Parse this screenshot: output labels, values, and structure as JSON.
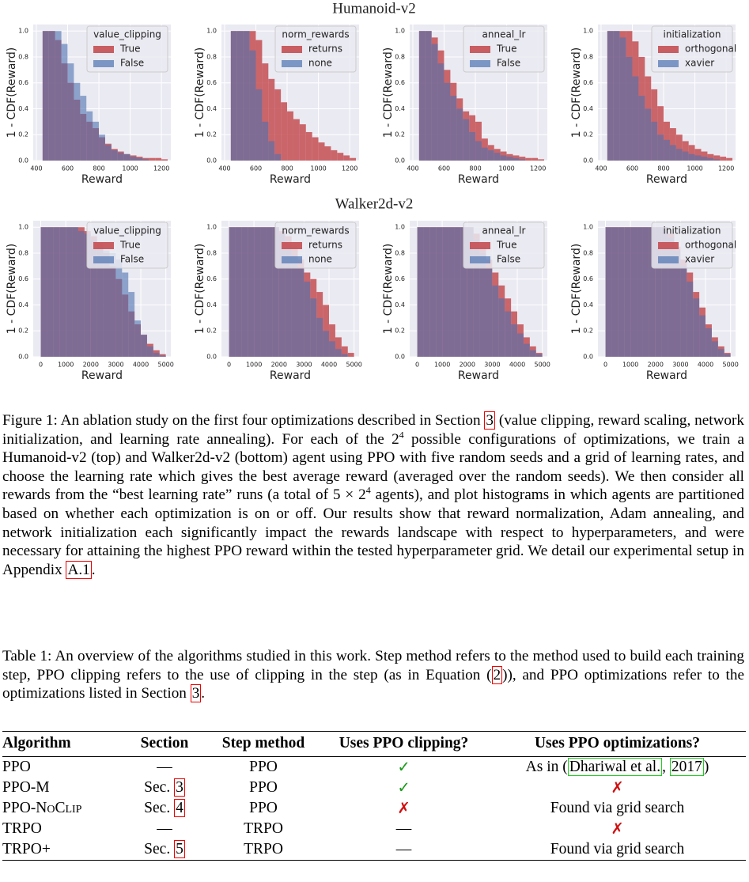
{
  "row_titles": [
    "Humanoid-v2",
    "Walker2d-v2"
  ],
  "chart_data": [
    {
      "type": "histogram",
      "xlabel": "Reward",
      "ylabel": "1 - CDF(Reward)",
      "legend_title": "value_clipping",
      "legend": "upper right",
      "grid": true,
      "bins": [
        440,
        480,
        520,
        560,
        600,
        640,
        680,
        720,
        760,
        800,
        840,
        880,
        920,
        960,
        1000,
        1040,
        1080,
        1120,
        1160,
        1200,
        1240
      ],
      "series": [
        {
          "name": "True",
          "color": "#c44e52",
          "values": [
            1,
            1,
            0.93,
            0.75,
            0.6,
            0.47,
            0.36,
            0.3,
            0.25,
            0.18,
            0.13,
            0.09,
            0.07,
            0.05,
            0.04,
            0.03,
            0.02,
            0.02,
            0.02,
            0.01
          ]
        },
        {
          "name": "False",
          "color": "#4c72b0",
          "values": [
            1,
            1,
            1,
            0.9,
            0.75,
            0.6,
            0.5,
            0.38,
            0.3,
            0.2,
            0.12,
            0.08,
            0.06,
            0.05,
            0.03,
            0.02,
            0.01,
            0,
            0,
            0
          ]
        }
      ],
      "xlim": [
        380,
        1260
      ],
      "xticks": [
        400,
        600,
        800,
        1000,
        1200
      ],
      "ylim": [
        0,
        1.05
      ],
      "yticks": [
        {
          "value": 0,
          "label": "0.0"
        },
        0.2,
        0.4,
        0.6,
        0.8,
        {
          "value": 1,
          "label": "1.0"
        }
      ]
    },
    {
      "type": "histogram",
      "xlabel": "Reward",
      "ylabel": "1 - CDF(Reward)",
      "legend_title": "norm_rewards",
      "legend": "upper right",
      "grid": true,
      "bins": [
        440,
        480,
        520,
        560,
        600,
        640,
        680,
        720,
        760,
        800,
        840,
        880,
        920,
        960,
        1000,
        1040,
        1080,
        1120,
        1160,
        1200,
        1240
      ],
      "series": [
        {
          "name": "returns",
          "color": "#c44e52",
          "values": [
            1,
            1,
            1,
            1,
            0.93,
            0.75,
            0.63,
            0.55,
            0.45,
            0.38,
            0.32,
            0.28,
            0.22,
            0.18,
            0.14,
            0.11,
            0.08,
            0.06,
            0.04,
            0.02
          ]
        },
        {
          "name": "none",
          "color": "#4c72b0",
          "values": [
            1,
            1,
            1,
            0.85,
            0.55,
            0.3,
            0.15,
            0.05,
            0,
            0,
            0,
            0,
            0,
            0,
            0,
            0,
            0,
            0,
            0,
            0
          ]
        }
      ],
      "xlim": [
        380,
        1260
      ],
      "xticks": [
        400,
        600,
        800,
        1000,
        1200
      ],
      "ylim": [
        0,
        1.05
      ],
      "yticks": [
        {
          "value": 0,
          "label": "0.0"
        },
        0.2,
        0.4,
        0.6,
        0.8,
        {
          "value": 1,
          "label": "1.0"
        }
      ]
    },
    {
      "type": "histogram",
      "xlabel": "Reward",
      "ylabel": "1 - CDF(Reward)",
      "legend_title": "anneal_lr",
      "legend": "upper right",
      "grid": true,
      "bins": [
        440,
        480,
        520,
        560,
        600,
        640,
        680,
        720,
        760,
        800,
        840,
        880,
        920,
        960,
        1000,
        1040,
        1080,
        1120,
        1160,
        1200,
        1240
      ],
      "series": [
        {
          "name": "True",
          "color": "#c44e52",
          "values": [
            1,
            1,
            0.95,
            0.85,
            0.7,
            0.6,
            0.48,
            0.38,
            0.35,
            0.3,
            0.17,
            0.12,
            0.09,
            0.07,
            0.05,
            0.04,
            0.03,
            0.02,
            0.02,
            0.01
          ]
        },
        {
          "name": "False",
          "color": "#4c72b0",
          "values": [
            1,
            1,
            0.9,
            0.75,
            0.6,
            0.5,
            0.4,
            0.32,
            0.22,
            0.15,
            0.1,
            0.08,
            0.06,
            0.04,
            0.03,
            0.02,
            0.01,
            0,
            0,
            0
          ]
        }
      ],
      "xlim": [
        380,
        1260
      ],
      "xticks": [
        400,
        600,
        800,
        1000,
        1200
      ],
      "ylim": [
        0,
        1.05
      ],
      "yticks": [
        {
          "value": 0,
          "label": "0.0"
        },
        0.2,
        0.4,
        0.6,
        0.8,
        {
          "value": 1,
          "label": "1.0"
        }
      ]
    },
    {
      "type": "histogram",
      "xlabel": "Reward",
      "ylabel": "1 - CDF(Reward)",
      "legend_title": "initialization",
      "legend": "upper right",
      "grid": true,
      "bins": [
        440,
        480,
        520,
        560,
        600,
        640,
        680,
        720,
        760,
        800,
        840,
        880,
        920,
        960,
        1000,
        1040,
        1080,
        1120,
        1160,
        1200,
        1240
      ],
      "series": [
        {
          "name": "orthogonal",
          "color": "#c44e52",
          "values": [
            1,
            1,
            1,
            1,
            0.92,
            0.8,
            0.65,
            0.55,
            0.42,
            0.3,
            0.25,
            0.2,
            0.15,
            0.12,
            0.09,
            0.07,
            0.05,
            0.04,
            0.03,
            0.02
          ]
        },
        {
          "name": "xavier",
          "color": "#4c72b0",
          "values": [
            1,
            1,
            0.95,
            0.8,
            0.65,
            0.5,
            0.4,
            0.3,
            0.2,
            0.16,
            0.12,
            0.09,
            0.07,
            0.05,
            0.04,
            0.03,
            0.02,
            0.01,
            0,
            0
          ]
        }
      ],
      "xlim": [
        380,
        1260
      ],
      "xticks": [
        400,
        600,
        800,
        1000,
        1200
      ],
      "ylim": [
        0,
        1.05
      ],
      "yticks": [
        {
          "value": 0,
          "label": "0.0"
        },
        0.2,
        0.4,
        0.6,
        0.8,
        {
          "value": 1,
          "label": "1.0"
        }
      ]
    },
    {
      "type": "histogram",
      "xlabel": "Reward",
      "ylabel": "1 - CDF(Reward)",
      "legend_title": "value_clipping",
      "legend": "upper right",
      "grid": true,
      "bins": [
        0,
        250,
        500,
        750,
        1000,
        1250,
        1500,
        1750,
        2000,
        2250,
        2500,
        2750,
        3000,
        3250,
        3500,
        3750,
        4000,
        4250,
        4500,
        4750,
        5000
      ],
      "series": [
        {
          "name": "True",
          "color": "#c44e52",
          "values": [
            1,
            1,
            1,
            1,
            1,
            1,
            1,
            0.97,
            0.93,
            0.88,
            0.8,
            0.7,
            0.6,
            0.48,
            0.35,
            0.25,
            0.17,
            0.1,
            0.05,
            0.02
          ]
        },
        {
          "name": "False",
          "color": "#4c72b0",
          "values": [
            1,
            1,
            1,
            1,
            1,
            1,
            0.97,
            0.95,
            0.9,
            0.85,
            0.82,
            0.8,
            0.75,
            0.65,
            0.5,
            0.28,
            0.17,
            0.08,
            0.03,
            0.01
          ]
        }
      ],
      "xlim": [
        -300,
        5200
      ],
      "xticks": [
        0,
        1000,
        2000,
        3000,
        4000,
        5000
      ],
      "ylim": [
        0,
        1.05
      ],
      "yticks": [
        {
          "value": 0,
          "label": "0.0"
        },
        0.2,
        0.4,
        0.6,
        0.8,
        {
          "value": 1,
          "label": "1.0"
        }
      ]
    },
    {
      "type": "histogram",
      "xlabel": "Reward",
      "ylabel": "1 - CDF(Reward)",
      "legend_title": "norm_rewards",
      "legend": "upper right",
      "grid": true,
      "bins": [
        0,
        250,
        500,
        750,
        1000,
        1250,
        1500,
        1750,
        2000,
        2250,
        2500,
        2750,
        3000,
        3250,
        3500,
        3750,
        4000,
        4250,
        4500,
        4750,
        5000
      ],
      "series": [
        {
          "name": "returns",
          "color": "#c44e52",
          "values": [
            1,
            1,
            1,
            1,
            1,
            1,
            1,
            1,
            0.97,
            0.93,
            0.85,
            0.75,
            0.65,
            0.6,
            0.5,
            0.4,
            0.25,
            0.15,
            0.08,
            0.03
          ]
        },
        {
          "name": "none",
          "color": "#4c72b0",
          "values": [
            1,
            1,
            1,
            1,
            1,
            1,
            1,
            1,
            0.95,
            0.88,
            0.78,
            0.68,
            0.58,
            0.45,
            0.3,
            0.2,
            0.12,
            0.06,
            0.02,
            0
          ]
        }
      ],
      "xlim": [
        -300,
        5200
      ],
      "xticks": [
        0,
        1000,
        2000,
        3000,
        4000,
        5000
      ],
      "ylim": [
        0,
        1.05
      ],
      "yticks": [
        {
          "value": 0,
          "label": "0.0"
        },
        0.2,
        0.4,
        0.6,
        0.8,
        {
          "value": 1,
          "label": "1.0"
        }
      ]
    },
    {
      "type": "histogram",
      "xlabel": "Reward",
      "ylabel": "1 - CDF(Reward)",
      "legend_title": "anneal_lr",
      "legend": "upper right",
      "grid": true,
      "bins": [
        0,
        250,
        500,
        750,
        1000,
        1250,
        1500,
        1750,
        2000,
        2250,
        2500,
        2750,
        3000,
        3250,
        3500,
        3750,
        4000,
        4250,
        4500,
        4750,
        5000
      ],
      "series": [
        {
          "name": "True",
          "color": "#c44e52",
          "values": [
            1,
            1,
            1,
            1,
            1,
            1,
            1,
            1,
            1,
            0.95,
            0.85,
            0.75,
            0.65,
            0.55,
            0.45,
            0.35,
            0.25,
            0.15,
            0.08,
            0.03
          ]
        },
        {
          "name": "False",
          "color": "#4c72b0",
          "values": [
            1,
            1,
            1,
            1,
            1,
            1,
            1,
            1,
            1,
            0.9,
            0.8,
            0.68,
            0.55,
            0.45,
            0.35,
            0.25,
            0.18,
            0.1,
            0.05,
            0.02
          ]
        }
      ],
      "xlim": [
        -300,
        5200
      ],
      "xticks": [
        0,
        1000,
        2000,
        3000,
        4000,
        5000
      ],
      "ylim": [
        0,
        1.05
      ],
      "yticks": [
        {
          "value": 0,
          "label": "0.0"
        },
        0.2,
        0.4,
        0.6,
        0.8,
        {
          "value": 1,
          "label": "1.0"
        }
      ]
    },
    {
      "type": "histogram",
      "xlabel": "Reward",
      "ylabel": "1 - CDF(Reward)",
      "legend_title": "initialization",
      "legend": "upper right",
      "grid": true,
      "bins": [
        0,
        250,
        500,
        750,
        1000,
        1250,
        1500,
        1750,
        2000,
        2250,
        2500,
        2750,
        3000,
        3250,
        3500,
        3750,
        4000,
        4250,
        4500,
        4750,
        5000
      ],
      "series": [
        {
          "name": "orthogonal",
          "color": "#c44e52",
          "values": [
            1,
            1,
            1,
            1,
            1,
            1,
            1,
            1,
            1,
            1,
            0.95,
            0.85,
            0.75,
            0.65,
            0.5,
            0.38,
            0.25,
            0.15,
            0.08,
            0.03
          ]
        },
        {
          "name": "xavier",
          "color": "#4c72b0",
          "values": [
            1,
            1,
            1,
            1,
            1,
            1,
            1,
            1,
            1,
            1,
            0.92,
            0.82,
            0.7,
            0.58,
            0.45,
            0.32,
            0.22,
            0.12,
            0.06,
            0.02
          ]
        }
      ],
      "xlim": [
        -300,
        5200
      ],
      "xticks": [
        0,
        1000,
        2000,
        3000,
        4000,
        5000
      ],
      "ylim": [
        0,
        1.05
      ],
      "yticks": [
        {
          "value": 0,
          "label": "0.0"
        },
        0.2,
        0.4,
        0.6,
        0.8,
        {
          "value": 1,
          "label": "1.0"
        }
      ]
    }
  ],
  "figure_caption": [
    "Figure 1: An ablation study on the first four optimizations described in Section ",
    "3",
    " (value clipping, reward scaling, network initialization, and learning rate annealing). For each of the 2",
    "4",
    " possible configurations of optimizations, we train a Humanoid-v2 (top) and Walker2d-v2 (bottom) agent using PPO with five random seeds and a grid of learning rates, and choose the learning rate which gives the best average reward (averaged over the random seeds). We then consider all rewards from the “best learning rate” runs (a total of 5 × 2",
    "4",
    " agents), and plot histograms in which agents are partitioned based on whether each optimization is on or off. Our results show that reward normalization, Adam annealing, and network initialization each significantly impact the rewards landscape with respect to hyperparameters, and were necessary for attaining the highest PPO reward within the tested hyperparameter grid. We detail our experimental setup in Appendix ",
    "A.1",
    "."
  ],
  "table_caption": [
    "Table 1: An overview of the algorithms studied in this work. Step method refers to the method used to build each training step, PPO clipping refers to the use of clipping in the step (as in Equation (",
    "2",
    ")), and PPO optimizations refer to the optimizations listed in Section ",
    "3",
    "."
  ],
  "table": {
    "header": [
      "Algorithm",
      "Section",
      "Step method",
      "Uses PPO clipping?",
      "Uses PPO optimizations?"
    ],
    "rows": [
      [
        "PPO",
        "—",
        "PPO",
        "✓",
        [
          "As in (",
          "Dhariwal et al.",
          ", ",
          "2017",
          ")"
        ]
      ],
      [
        "PPO-M",
        [
          "Sec. ",
          "3"
        ],
        "PPO",
        "✓",
        "✗"
      ],
      [
        "PPO-NoClip",
        [
          "Sec. ",
          "4"
        ],
        "PPO",
        "✗",
        "Found via grid search"
      ],
      [
        "TRPO",
        "—",
        "TRPO",
        "—",
        "✗"
      ],
      [
        "TRPO+",
        [
          "Sec. ",
          "5"
        ],
        "TRPO",
        "—",
        "Found via grid search"
      ]
    ]
  }
}
